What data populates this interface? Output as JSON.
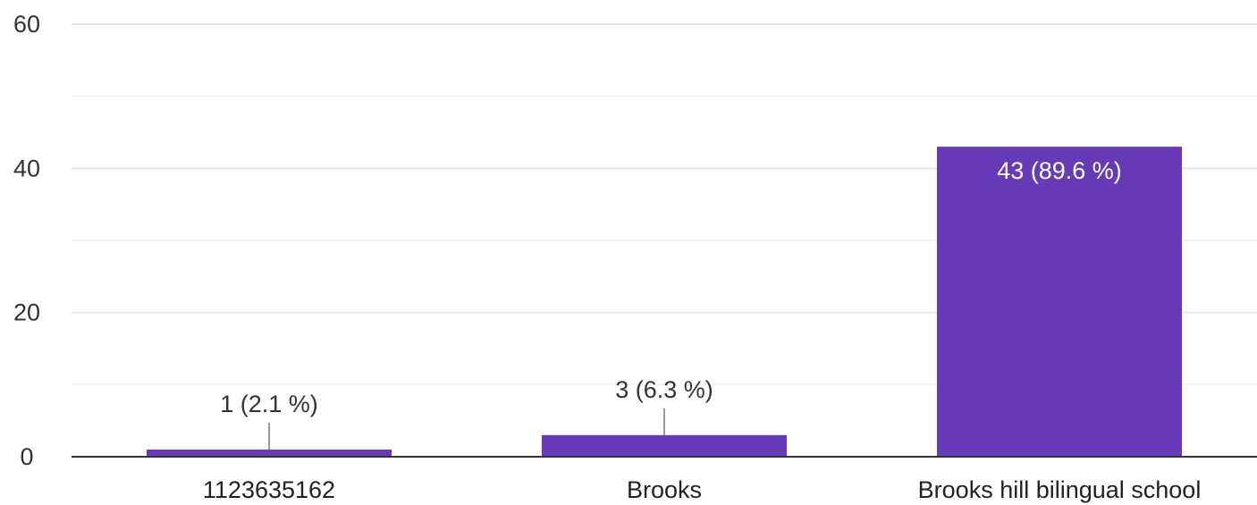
{
  "chart_data": {
    "type": "bar",
    "categories": [
      "1123635162",
      "Brooks",
      "Brooks hill bilingual school"
    ],
    "values": [
      1,
      3,
      43
    ],
    "data_labels": [
      "1 (2.1 %)",
      "3 (6.3 %)",
      "43 (89.6 %)"
    ],
    "ylim": [
      0,
      60
    ],
    "yticks": [
      0,
      20,
      40,
      60
    ],
    "ytick_labels": [
      "0",
      "20",
      "40",
      "60"
    ],
    "grid": true,
    "legend": "none",
    "title": "",
    "xlabel": "",
    "ylabel": "",
    "bar_color": "#673ab7"
  }
}
